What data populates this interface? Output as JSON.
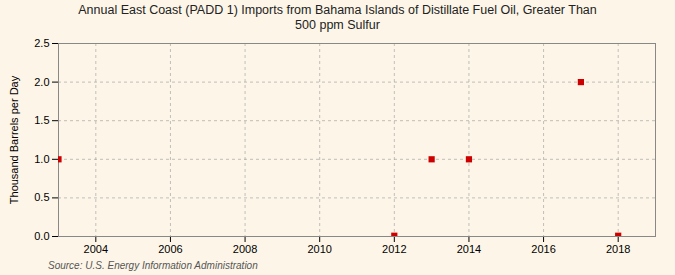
{
  "chart_data": {
    "type": "scatter",
    "title": "Annual East Coast (PADD 1) Imports from Bahama Islands of Distillate Fuel Oil, Greater Than\n500 ppm Sulfur",
    "ylabel": "Thousand Barrels per Day",
    "annotations": [
      "Source: U.S. Energy Information Administration"
    ],
    "x": [
      2003,
      2012,
      2013,
      2014,
      2017,
      2018
    ],
    "values": [
      1.0,
      0.01,
      1.0,
      1.0,
      2.0,
      0.01
    ],
    "color": "#cc0000",
    "marker": "square",
    "xlim": [
      2003,
      2019
    ],
    "ylim": [
      0.0,
      2.5
    ],
    "xticks": [
      2004,
      2006,
      2008,
      2010,
      2012,
      2014,
      2016,
      2018
    ],
    "yticks": [
      {
        "value": 0.0,
        "label": "0.0"
      },
      0.5,
      {
        "value": 1.0,
        "label": "1.0"
      },
      1.5,
      {
        "value": 2.0,
        "label": "2.0"
      },
      2.5
    ],
    "grid": true
  }
}
